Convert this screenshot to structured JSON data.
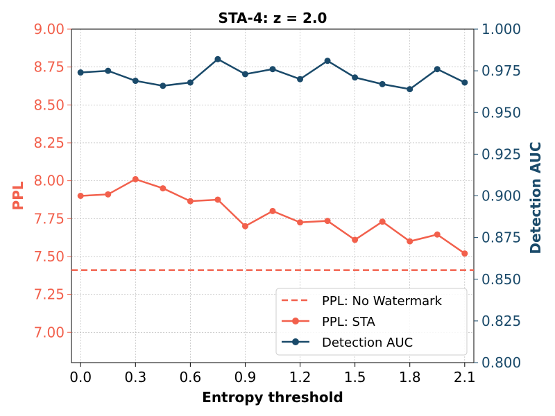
{
  "chart_data": {
    "type": "line",
    "title": "STA-4: z = 2.0",
    "xlabel": "Entropy threshold",
    "ylabel_left": "PPL",
    "ylabel_right": "Detection AUC",
    "xlim": [
      -0.05,
      2.15
    ],
    "ylim_left": [
      6.8,
      9.0
    ],
    "ylim_right": [
      0.8,
      1.0
    ],
    "grid": true,
    "legend_position": "lower-right",
    "x_ticks": [
      "0.0",
      "0.3",
      "0.6",
      "0.9",
      "1.2",
      "1.5",
      "1.8",
      "2.1"
    ],
    "y_left_ticks": [
      "7.00",
      "7.25",
      "7.50",
      "7.75",
      "8.00",
      "8.25",
      "8.50",
      "8.75",
      "9.00"
    ],
    "y_right_ticks": [
      "0.800",
      "0.825",
      "0.850",
      "0.875",
      "0.900",
      "0.925",
      "0.950",
      "0.975",
      "1.000"
    ],
    "colors": {
      "ppl": "#f2604c",
      "auc": "#1a4a6a"
    },
    "x": [
      0.0,
      0.15,
      0.3,
      0.45,
      0.6,
      0.75,
      0.9,
      1.05,
      1.2,
      1.35,
      1.5,
      1.65,
      1.8,
      1.95,
      2.1
    ],
    "series": [
      {
        "name": "PPL: No Watermark",
        "axis": "left",
        "style": "dashed",
        "constant": 7.41
      },
      {
        "name": "PPL: STA",
        "axis": "left",
        "style": "line-marker",
        "values": [
          7.9,
          7.91,
          8.01,
          7.95,
          7.865,
          7.875,
          7.7,
          7.8,
          7.725,
          7.735,
          7.61,
          7.73,
          7.6,
          7.645,
          7.52
        ]
      },
      {
        "name": "Detection AUC",
        "axis": "right",
        "style": "line-marker",
        "values": [
          0.974,
          0.975,
          0.969,
          0.966,
          0.968,
          0.982,
          0.973,
          0.976,
          0.97,
          0.981,
          0.971,
          0.967,
          0.964,
          0.976,
          0.968
        ]
      }
    ]
  }
}
